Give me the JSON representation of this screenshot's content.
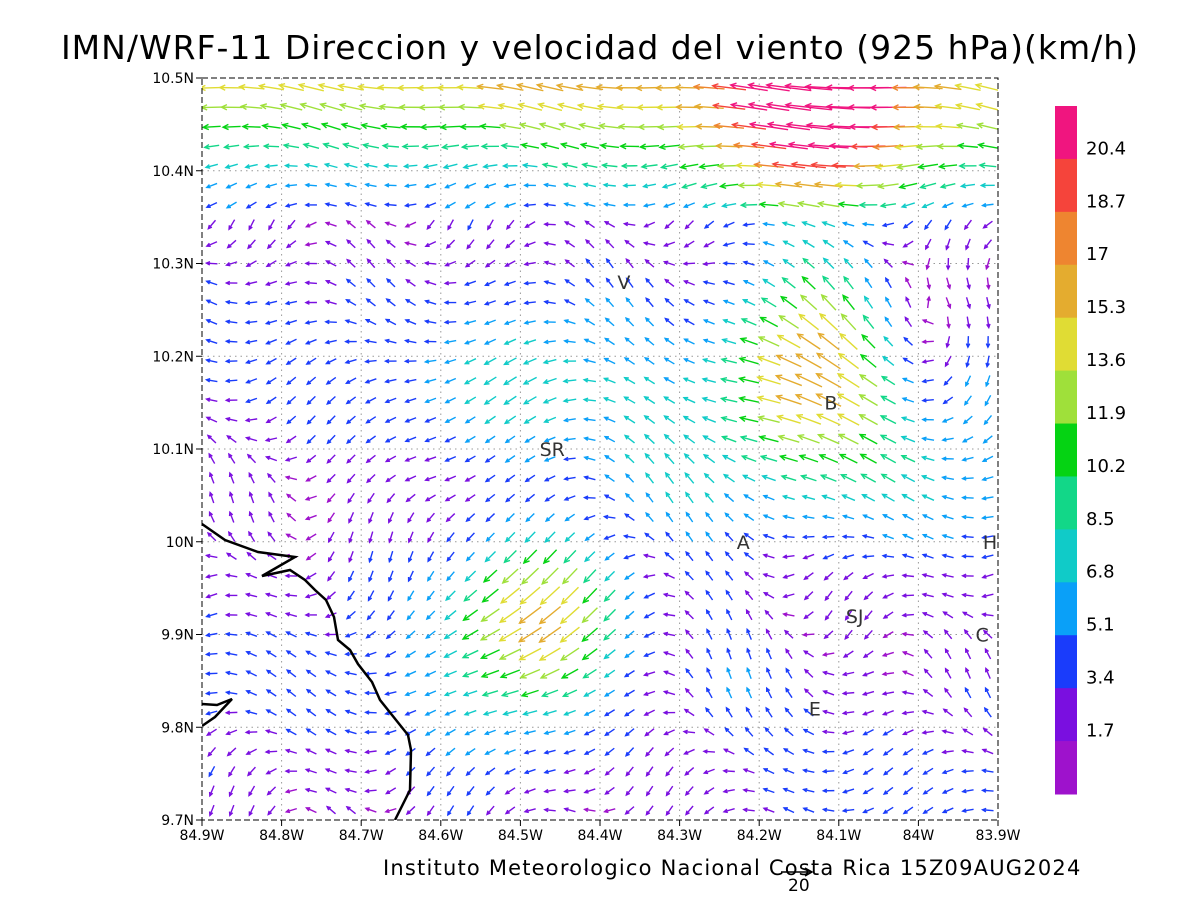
{
  "header": {
    "title": "IMN/WRF-11 Direccion y velocidad del viento (925 hPa)(km/h)"
  },
  "footer": {
    "credit": "Instituto Meteorologico Nacional Costa Rica 15Z09AUG2024",
    "reference_vector_value": "20"
  },
  "map": {
    "lon_ticks": [
      "84.9W",
      "84.8W",
      "84.7W",
      "84.6W",
      "84.5W",
      "84.4W",
      "84.3W",
      "84.2W",
      "84.1W",
      "84W",
      "83.9W"
    ],
    "lat_ticks": [
      "10.5N",
      "10.4N",
      "10.3N",
      "10.2N",
      "10.1N",
      "10N",
      "9.9N",
      "9.8N",
      "9.7N"
    ],
    "lon_range": [
      -84.9,
      -83.9
    ],
    "lat_range": [
      9.7,
      10.5
    ],
    "grid": "dotted",
    "coastline_color": "#000000",
    "cities": [
      {
        "label": "V",
        "lon": -84.37,
        "lat": 10.28
      },
      {
        "label": "B",
        "lon": -84.11,
        "lat": 10.15
      },
      {
        "label": "SR",
        "lon": -84.46,
        "lat": 10.1
      },
      {
        "label": "A",
        "lon": -84.22,
        "lat": 10.0
      },
      {
        "label": "SJ",
        "lon": -84.08,
        "lat": 9.92
      },
      {
        "label": "C",
        "lon": -83.92,
        "lat": 9.9
      },
      {
        "label": "H",
        "lon": -83.91,
        "lat": 10.0
      },
      {
        "label": "E",
        "lon": -84.13,
        "lat": 9.82
      }
    ]
  },
  "colorbar": {
    "labels": [
      "20.4",
      "18.7",
      "17",
      "15.3",
      "13.6",
      "11.9",
      "10.2",
      "8.5",
      "6.8",
      "5.1",
      "3.4",
      "1.7"
    ],
    "colors": [
      "#f0157f",
      "#f5443b",
      "#ee8530",
      "#e4ac2f",
      "#e0dc34",
      "#9fe03a",
      "#05d313",
      "#12d788",
      "#10cbc8",
      "#0aa0f8",
      "#1a3cfb",
      "#7a0fe0",
      "#9e12cc"
    ]
  },
  "wind_field": {
    "vortices": [
      {
        "lon": -84.47,
        "lat": 10.09,
        "strength": 1
      },
      {
        "lon": -84.0,
        "lat": 10.17,
        "strength": -0.7
      },
      {
        "lon": -84.35,
        "lat": 9.88,
        "strength": 0.6
      }
    ],
    "jets": [
      {
        "lon_from": -84.42,
        "lat_from": 9.96,
        "lon_to": -84.55,
        "lat_to": 9.88,
        "speed": 19
      },
      {
        "lon_from": -84.12,
        "lat_from": 10.18,
        "lon_to": -84.16,
        "lat_to": 10.2,
        "speed": 18
      },
      {
        "lon_from": -83.95,
        "lat_from": 10.46,
        "lon_to": -84.3,
        "lat_to": 10.46,
        "speed": 17
      }
    ]
  }
}
